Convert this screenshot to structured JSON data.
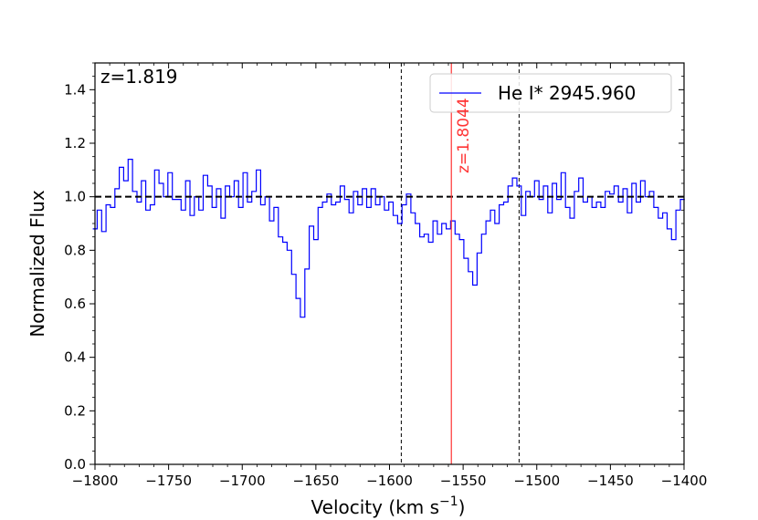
{
  "chart_data": {
    "type": "line",
    "xlabel": "Velocity (km s",
    "xlabel_sup": "−1",
    "xlabel_end": ")",
    "ylabel": "Normalized Flux",
    "xlim": [
      -1800,
      -1400
    ],
    "ylim": [
      0.0,
      1.5
    ],
    "xticks": [
      -1800,
      -1750,
      -1700,
      -1650,
      -1600,
      -1550,
      -1500,
      -1450,
      -1400
    ],
    "xtick_labels": [
      "−1800",
      "−1750",
      "−1700",
      "−1650",
      "−1600",
      "−1550",
      "−1500",
      "−1450",
      "−1400"
    ],
    "yticks": [
      0.0,
      0.2,
      0.4,
      0.6,
      0.8,
      1.0,
      1.2,
      1.4
    ],
    "ytick_labels": [
      "0.0",
      "0.2",
      "0.4",
      "0.6",
      "0.8",
      "1.0",
      "1.2",
      "1.4"
    ],
    "annotation_z": "z=1.819",
    "legend_label": "He I* 2945.960",
    "legend_position": "top-right",
    "continuum_level": 1.0,
    "vlines_dashed": [
      -1592,
      -1512
    ],
    "vline_red": {
      "x": -1558,
      "label": "z=1.8044"
    },
    "colors": {
      "spectrum": "#0000ff",
      "red_line": "#ff3333",
      "red_text": "#ff3333",
      "continuum": "#000000"
    },
    "series": [
      {
        "name": "He I* 2945.960",
        "x": [
          -1800,
          -1797,
          -1794,
          -1791,
          -1788,
          -1785,
          -1782,
          -1779,
          -1776,
          -1773,
          -1770,
          -1767,
          -1764,
          -1761,
          -1758,
          -1755,
          -1752,
          -1749,
          -1746,
          -1743,
          -1740,
          -1737,
          -1734,
          -1731,
          -1728,
          -1725,
          -1722,
          -1719,
          -1716,
          -1713,
          -1710,
          -1707,
          -1704,
          -1701,
          -1698,
          -1695,
          -1692,
          -1689,
          -1686,
          -1683,
          -1680,
          -1677,
          -1674,
          -1671,
          -1668,
          -1665,
          -1662,
          -1659,
          -1656,
          -1653,
          -1650,
          -1647,
          -1644,
          -1641,
          -1638,
          -1635,
          -1632,
          -1629,
          -1626,
          -1623,
          -1620,
          -1617,
          -1614,
          -1611,
          -1608,
          -1605,
          -1602,
          -1599,
          -1596,
          -1593,
          -1590,
          -1587,
          -1584,
          -1581,
          -1578,
          -1575,
          -1572,
          -1569,
          -1566,
          -1563,
          -1560,
          -1557,
          -1554,
          -1551,
          -1548,
          -1545,
          -1542,
          -1539,
          -1536,
          -1533,
          -1530,
          -1527,
          -1524,
          -1521,
          -1518,
          -1515,
          -1512,
          -1509,
          -1506,
          -1503,
          -1500,
          -1497,
          -1494,
          -1491,
          -1488,
          -1485,
          -1482,
          -1479,
          -1476,
          -1473,
          -1470,
          -1467,
          -1464,
          -1461,
          -1458,
          -1455,
          -1452,
          -1449,
          -1446,
          -1443,
          -1440,
          -1437,
          -1434,
          -1431,
          -1428,
          -1425,
          -1422,
          -1419,
          -1416,
          -1413,
          -1410,
          -1407,
          -1404,
          -1401
        ],
        "y": [
          0.88,
          0.95,
          0.87,
          0.97,
          0.96,
          1.03,
          1.11,
          1.06,
          1.14,
          1.02,
          0.98,
          1.06,
          0.95,
          0.97,
          1.1,
          1.05,
          1.0,
          1.09,
          0.99,
          0.99,
          0.95,
          1.06,
          0.93,
          1.0,
          0.95,
          1.08,
          1.04,
          0.96,
          1.03,
          0.92,
          1.04,
          1.0,
          1.06,
          0.96,
          1.09,
          0.98,
          1.02,
          1.1,
          0.97,
          1.0,
          0.91,
          0.96,
          0.85,
          0.83,
          0.8,
          0.71,
          0.62,
          0.55,
          0.73,
          0.89,
          0.84,
          0.96,
          0.98,
          1.01,
          0.97,
          0.98,
          1.04,
          0.99,
          0.94,
          1.02,
          0.97,
          1.03,
          0.96,
          1.03,
          0.97,
          1.0,
          0.95,
          0.98,
          0.93,
          0.9,
          0.97,
          1.01,
          0.94,
          0.9,
          0.85,
          0.86,
          0.83,
          0.91,
          0.86,
          0.9,
          0.88,
          0.91,
          0.86,
          0.84,
          0.77,
          0.72,
          0.67,
          0.79,
          0.86,
          0.91,
          0.95,
          0.9,
          0.97,
          0.98,
          1.04,
          1.07,
          1.04,
          0.93,
          1.02,
          1.0,
          1.06,
          0.99,
          1.04,
          0.94,
          1.05,
          0.99,
          1.09,
          0.96,
          0.92,
          1.02,
          1.07,
          0.98,
          1.0,
          0.96,
          0.98,
          0.96,
          1.02,
          1.01,
          1.04,
          0.98,
          1.03,
          0.94,
          1.05,
          0.98,
          1.06,
          1.0,
          1.02,
          0.96,
          0.92,
          0.94,
          0.88,
          0.84,
          0.95,
          0.99
        ]
      }
    ]
  }
}
